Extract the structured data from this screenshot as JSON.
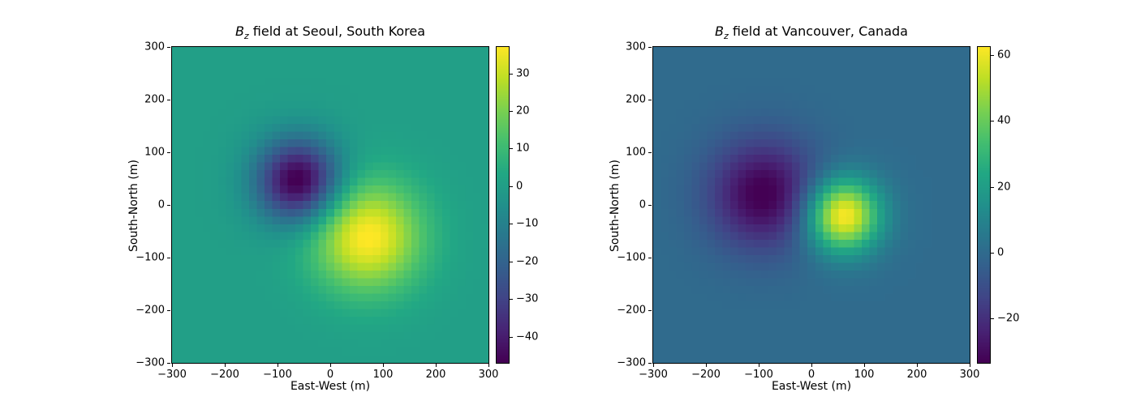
{
  "figure": {
    "background": "#ffffff",
    "text_color": "#000000"
  },
  "chart_data": {
    "type": "heatmap",
    "colormap": "viridis",
    "colormap_stops": [
      "#440154",
      "#482475",
      "#414487",
      "#355f8d",
      "#2a788e",
      "#21918c",
      "#22a884",
      "#44bf70",
      "#7ad151",
      "#bddf26",
      "#fde725"
    ],
    "plots": [
      {
        "title_parts": {
          "var": "B",
          "sub": "z",
          "rest": " field at Seoul, South Korea"
        },
        "xlabel": "East-West (m)",
        "ylabel": "South-North (m)",
        "x_range": [
          -300,
          300
        ],
        "y_range": [
          -300,
          300
        ],
        "grid_n": 41,
        "vmin": -47,
        "vmax": 37,
        "x_ticks": [
          {
            "value": -300,
            "label": "−300"
          },
          {
            "value": -200,
            "label": "−200"
          },
          {
            "value": -100,
            "label": "−100"
          },
          {
            "value": 0,
            "label": "0"
          },
          {
            "value": 100,
            "label": "100"
          },
          {
            "value": 200,
            "label": "200"
          },
          {
            "value": 300,
            "label": "300"
          }
        ],
        "y_ticks": [
          {
            "value": 300,
            "label": "300"
          },
          {
            "value": 200,
            "label": "200"
          },
          {
            "value": 100,
            "label": "100"
          },
          {
            "value": 0,
            "label": "0"
          },
          {
            "value": -100,
            "label": "−100"
          },
          {
            "value": -200,
            "label": "−200"
          },
          {
            "value": -300,
            "label": "−300"
          }
        ],
        "colorbar_ticks": [
          {
            "value": 30,
            "label": "30"
          },
          {
            "value": 20,
            "label": "20"
          },
          {
            "value": 10,
            "label": "10"
          },
          {
            "value": 0,
            "label": "0"
          },
          {
            "value": -10,
            "label": "−10"
          },
          {
            "value": -20,
            "label": "−20"
          },
          {
            "value": -30,
            "label": "−30"
          },
          {
            "value": -40,
            "label": "−40"
          }
        ],
        "gaussians": [
          {
            "x0": -60,
            "y0": 45,
            "sigma": 55,
            "amplitude": -50
          },
          {
            "x0": 70,
            "y0": -60,
            "sigma": 72,
            "amplitude": 38
          }
        ]
      },
      {
        "title_parts": {
          "var": "B",
          "sub": "z",
          "rest": " field at Vancouver, Canada"
        },
        "xlabel": "East-West (m)",
        "ylabel": "South-North (m)",
        "x_range": [
          -300,
          300
        ],
        "y_range": [
          -300,
          300
        ],
        "grid_n": 41,
        "vmin": -33.5,
        "vmax": 62.5,
        "x_ticks": [
          {
            "value": -300,
            "label": "−300"
          },
          {
            "value": -200,
            "label": "−200"
          },
          {
            "value": -100,
            "label": "−100"
          },
          {
            "value": 0,
            "label": "0"
          },
          {
            "value": 100,
            "label": "100"
          },
          {
            "value": 200,
            "label": "200"
          },
          {
            "value": 300,
            "label": "300"
          }
        ],
        "y_ticks": [
          {
            "value": 300,
            "label": "300"
          },
          {
            "value": 200,
            "label": "200"
          },
          {
            "value": 100,
            "label": "100"
          },
          {
            "value": 0,
            "label": "0"
          },
          {
            "value": -100,
            "label": "−100"
          },
          {
            "value": -200,
            "label": "−200"
          },
          {
            "value": -300,
            "label": "−300"
          }
        ],
        "colorbar_ticks": [
          {
            "value": 60,
            "label": "60"
          },
          {
            "value": 40,
            "label": "40"
          },
          {
            "value": 20,
            "label": "20"
          },
          {
            "value": 0,
            "label": "0"
          },
          {
            "value": -20,
            "label": "−20"
          }
        ],
        "gaussians": [
          {
            "x0": -90,
            "y0": 20,
            "sigma": 72,
            "amplitude": -35
          },
          {
            "x0": 60,
            "y0": -20,
            "sigma": 48,
            "amplitude": 65
          }
        ]
      }
    ]
  }
}
